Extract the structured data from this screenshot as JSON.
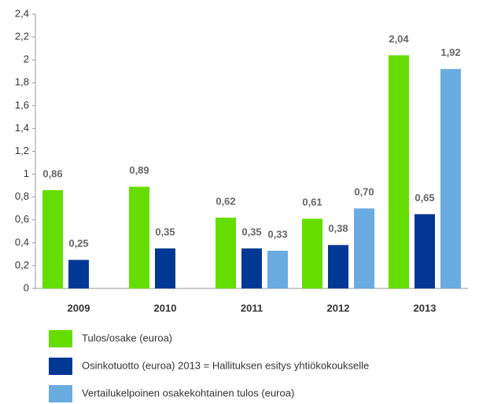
{
  "chart_data": {
    "type": "bar",
    "categories": [
      "2009",
      "2010",
      "2011",
      "2012",
      "2013"
    ],
    "series": [
      {
        "name": "Tulos/osake (euroa)",
        "color": "#66dd00",
        "values": [
          0.86,
          0.89,
          0.62,
          0.61,
          2.04
        ],
        "value_labels": [
          "0,86",
          "0,89",
          "0,62",
          "0,61",
          "2,04"
        ]
      },
      {
        "name": "Osinkotuotto (euroa) 2013 = Hallituksen esitys yhtiökokoukselle",
        "color": "#003893",
        "values": [
          0.25,
          0.35,
          0.35,
          0.38,
          0.65
        ],
        "value_labels": [
          "0,25",
          "0,35",
          "0,35",
          "0,38",
          "0,65"
        ]
      },
      {
        "name": "Vertailukelpoinen osakekohtainen tulos (euroa)",
        "color": "#6aabe0",
        "values": [
          null,
          null,
          0.33,
          0.7,
          1.92
        ],
        "value_labels": [
          null,
          null,
          "0,33",
          "0,70",
          "1,92"
        ]
      }
    ],
    "ylim": [
      0,
      2.4
    ],
    "yticks": [
      0,
      {
        "value": 0.2,
        "label": "0,2"
      },
      {
        "value": 0.4,
        "label": "0,4"
      },
      {
        "value": 0.6,
        "label": "0,6"
      },
      {
        "value": 0.8,
        "label": "0,8"
      },
      1,
      {
        "value": 1.2,
        "label": "1,2"
      },
      {
        "value": 1.4,
        "label": "1,4"
      },
      {
        "value": 1.6,
        "label": "1,6"
      },
      {
        "value": 1.8,
        "label": "1,8"
      },
      2,
      {
        "value": 2.2,
        "label": "2,2"
      },
      {
        "value": 2.4,
        "label": "2,4"
      }
    ],
    "grid": false
  }
}
